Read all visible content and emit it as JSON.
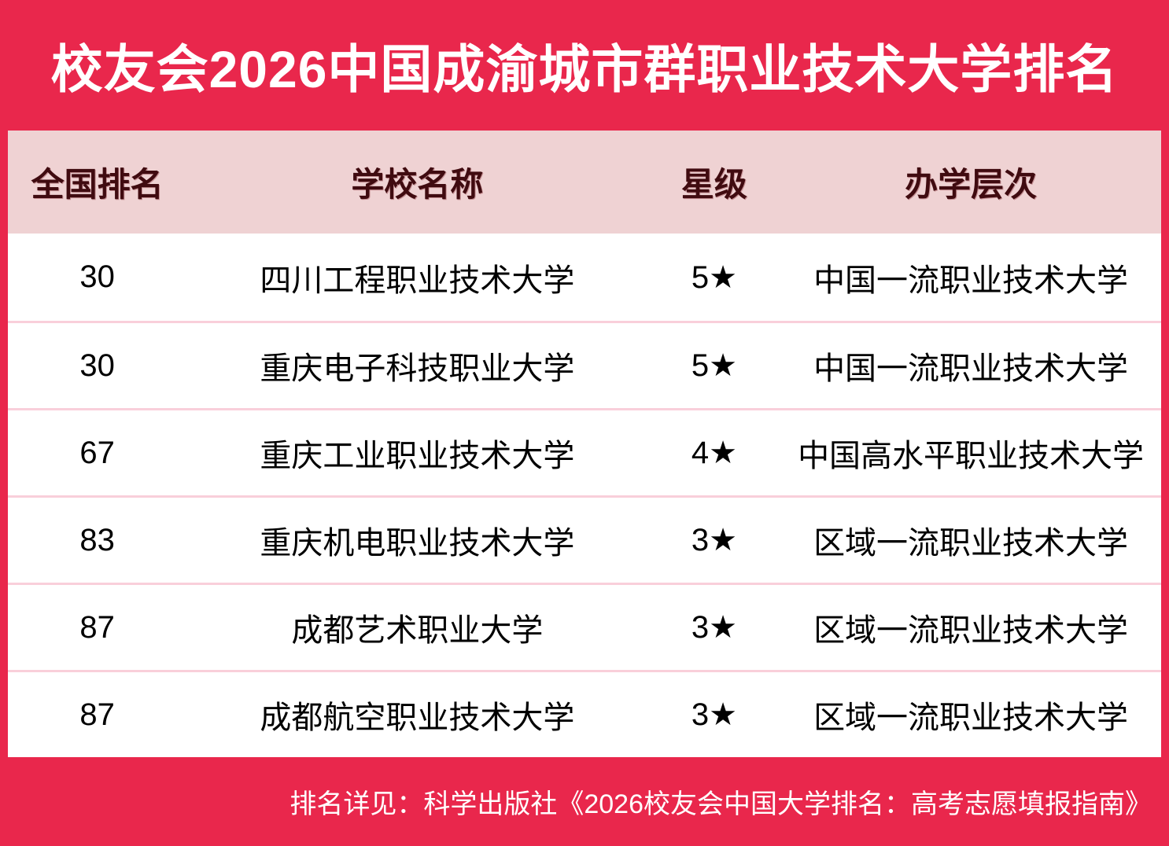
{
  "chart_data": {
    "type": "table",
    "title": "校友会2026中国成渝城市群职业技术大学排名",
    "columns": [
      "全国排名",
      "学校名称",
      "星级",
      "办学层次"
    ],
    "rows": [
      [
        "30",
        "四川工程职业技术大学",
        "5★",
        "中国一流职业技术大学"
      ],
      [
        "30",
        "重庆电子科技职业大学",
        "5★",
        "中国一流职业技术大学"
      ],
      [
        "67",
        "重庆工业职业技术大学",
        "4★",
        "中国高水平职业技术大学"
      ],
      [
        "83",
        "重庆机电职业技术大学",
        "3★",
        "区域一流职业技术大学"
      ],
      [
        "87",
        "成都艺术职业大学",
        "3★",
        "区域一流职业技术大学"
      ],
      [
        "87",
        "成都航空职业技术大学",
        "3★",
        "区域一流职业技术大学"
      ]
    ],
    "footnote": "排名详见：科学出版社《2026校友会中国大学排名：高考志愿填报指南》"
  },
  "colors": {
    "frame_red": "#e9274c",
    "header_bg": "#efd2d3",
    "header_text": "#400b10",
    "row_divider": "#f9cfda",
    "row_text": "#000000",
    "title_text": "#ffffff"
  }
}
